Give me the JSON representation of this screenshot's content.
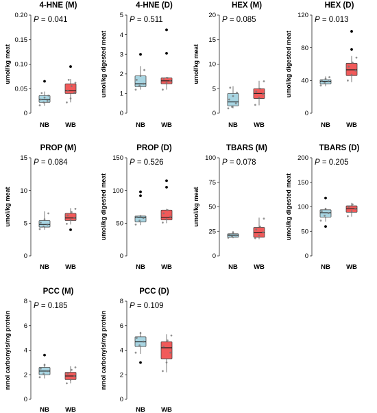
{
  "colors": {
    "NB": "#a8d5e2",
    "WB": "#f15a5a",
    "dot": "#000000",
    "jitter": "#777777",
    "axis": "#222222"
  },
  "chart_data": [
    {
      "type": "box",
      "title": "4-HNE (M)",
      "pvalue_label": "P",
      "pvalue": "= 0.041",
      "ylabel": "umol/kg meat",
      "ylim": [
        0,
        0.2
      ],
      "yticks": [
        "0",
        "0.05",
        "0.10",
        "0.15",
        "0.20"
      ],
      "yticks_values": [
        0,
        0.05,
        0.1,
        0.15,
        0.2
      ],
      "categories": [
        "NB",
        "WB"
      ],
      "boxes": [
        {
          "group": "NB",
          "q1": 0.022,
          "median": 0.028,
          "q3": 0.036,
          "whisker_low": 0.015,
          "whisker_high": 0.044,
          "outliers": [
            0.065
          ],
          "points": [
            0.016,
            0.022,
            0.025,
            0.028,
            0.032,
            0.036,
            0.041
          ]
        },
        {
          "group": "WB",
          "q1": 0.04,
          "median": 0.046,
          "q3": 0.06,
          "whisker_low": 0.022,
          "whisker_high": 0.07,
          "outliers": [
            0.095
          ],
          "points": [
            0.022,
            0.03,
            0.042,
            0.046,
            0.055,
            0.062,
            0.068
          ]
        }
      ]
    },
    {
      "type": "box",
      "title": "4-HNE (D)",
      "pvalue_label": "P",
      "pvalue": "= 0.511",
      "ylabel": "umol/kg digested meat",
      "ylim": [
        0,
        5
      ],
      "yticks": [
        "0",
        "1",
        "2",
        "3",
        "4",
        "5"
      ],
      "yticks_values": [
        0,
        1,
        2,
        3,
        4,
        5
      ],
      "categories": [
        "NB",
        "WB"
      ],
      "boxes": [
        {
          "group": "NB",
          "q1": 1.35,
          "median": 1.5,
          "q3": 1.9,
          "whisker_low": 1.2,
          "whisker_high": 2.4,
          "outliers": [
            3.0
          ],
          "points": [
            1.2,
            1.4,
            1.5,
            1.7,
            1.9,
            2.2
          ]
        },
        {
          "group": "WB",
          "q1": 1.5,
          "median": 1.65,
          "q3": 1.8,
          "whisker_low": 1.2,
          "whisker_high": 1.85,
          "outliers": [
            3.05,
            4.25
          ],
          "points": [
            1.2,
            1.55,
            1.65,
            1.75,
            1.8
          ]
        }
      ]
    },
    {
      "type": "box",
      "title": "HEX (M)",
      "pvalue_label": "P",
      "pvalue": "= 0.085",
      "ylabel": "umol/kg meat",
      "ylim": [
        0,
        20
      ],
      "yticks": [
        "0",
        "5",
        "10",
        "15",
        "20"
      ],
      "yticks_values": [
        0,
        5,
        10,
        15,
        20
      ],
      "categories": [
        "NB",
        "WB"
      ],
      "boxes": [
        {
          "group": "NB",
          "q1": 1.5,
          "median": 2.3,
          "q3": 4.0,
          "whisker_low": 1.0,
          "whisker_high": 5.5,
          "outliers": [],
          "points": [
            1.0,
            1.3,
            2.0,
            2.8,
            3.5,
            4.2,
            5.2
          ]
        },
        {
          "group": "WB",
          "q1": 3.0,
          "median": 4.0,
          "q3": 5.0,
          "whisker_low": 1.6,
          "whisker_high": 6.6,
          "outliers": [],
          "points": [
            1.7,
            3.2,
            3.9,
            4.4,
            5.0,
            6.5
          ]
        }
      ]
    },
    {
      "type": "box",
      "title": "HEX (D)",
      "pvalue_label": "P",
      "pvalue": "= 0.013",
      "ylabel": "umol/kg digested meat",
      "ylim": [
        0,
        120
      ],
      "yticks": [
        "0",
        "40",
        "80",
        "120"
      ],
      "yticks_values": [
        0,
        40,
        80,
        120
      ],
      "categories": [
        "NB",
        "WB"
      ],
      "boxes": [
        {
          "group": "NB",
          "q1": 36,
          "median": 39,
          "q3": 41,
          "whisker_low": 33,
          "whisker_high": 45,
          "outliers": [],
          "points": [
            34,
            37,
            39,
            40,
            42,
            44
          ]
        },
        {
          "group": "WB",
          "q1": 46,
          "median": 53,
          "q3": 61,
          "whisker_low": 38,
          "whisker_high": 70,
          "outliers": [
            78,
            100
          ],
          "points": [
            40,
            47,
            52,
            57,
            62,
            68
          ]
        }
      ]
    },
    {
      "type": "box",
      "title": "PROP (M)",
      "pvalue_label": "P",
      "pvalue": "= 0.084",
      "ylabel": "umol/kg meat",
      "ylim": [
        0,
        15
      ],
      "yticks": [
        "0",
        "5",
        "10",
        "15"
      ],
      "yticks_values": [
        0,
        5,
        10,
        15
      ],
      "categories": [
        "NB",
        "WB"
      ],
      "boxes": [
        {
          "group": "NB",
          "q1": 4.4,
          "median": 4.8,
          "q3": 5.4,
          "whisker_low": 4.0,
          "whisker_high": 6.8,
          "outliers": [],
          "points": [
            4.1,
            4.5,
            4.8,
            5.1,
            5.6,
            6.5
          ]
        },
        {
          "group": "WB",
          "q1": 5.4,
          "median": 5.8,
          "q3": 6.5,
          "whisker_low": 4.8,
          "whisker_high": 7.3,
          "outliers": [
            4.0
          ],
          "points": [
            4.9,
            5.5,
            5.8,
            6.2,
            6.7,
            7.2
          ]
        }
      ]
    },
    {
      "type": "box",
      "title": "PROP (D)",
      "pvalue_label": "P",
      "pvalue": "= 0.526",
      "ylabel": "umol/kg digested meat",
      "ylim": [
        0,
        150
      ],
      "yticks": [
        "0",
        "50",
        "100",
        "150"
      ],
      "yticks_values": [
        0,
        50,
        100,
        150
      ],
      "categories": [
        "NB",
        "WB"
      ],
      "boxes": [
        {
          "group": "NB",
          "q1": 52,
          "median": 59,
          "q3": 61,
          "whisker_low": 47,
          "whisker_high": 62,
          "outliers": [
            92,
            98
          ],
          "points": [
            48,
            54,
            58,
            60,
            61
          ]
        },
        {
          "group": "WB",
          "q1": 55,
          "median": 59,
          "q3": 70,
          "whisker_low": 50,
          "whisker_high": 72,
          "outliers": [
            105,
            115
          ],
          "points": [
            51,
            56,
            60,
            65,
            70
          ]
        }
      ]
    },
    {
      "type": "box",
      "title": "TBARS (M)",
      "pvalue_label": "P",
      "pvalue": "= 0.078",
      "ylabel": "umol/kg meat",
      "ylim": [
        0,
        100
      ],
      "yticks": [
        "0",
        "25",
        "50",
        "75",
        "100"
      ],
      "yticks_values": [
        0,
        25,
        50,
        75,
        100
      ],
      "categories": [
        "NB",
        "WB"
      ],
      "boxes": [
        {
          "group": "NB",
          "q1": 19,
          "median": 21,
          "q3": 22.5,
          "whisker_low": 18,
          "whisker_high": 25,
          "outliers": [],
          "points": [
            18.5,
            20,
            21,
            22,
            24
          ]
        },
        {
          "group": "WB",
          "q1": 19,
          "median": 24,
          "q3": 29,
          "whisker_low": 17,
          "whisker_high": 39,
          "outliers": [],
          "points": [
            18,
            21,
            24,
            27,
            30,
            38
          ]
        }
      ]
    },
    {
      "type": "box",
      "title": "TBARS (D)",
      "pvalue_label": "P",
      "pvalue": "= 0.205",
      "ylabel": "umol/kg digested meat",
      "ylim": [
        0,
        200
      ],
      "yticks": [
        "0",
        "50",
        "100",
        "150",
        "200"
      ],
      "yticks_values": [
        0,
        50,
        100,
        150,
        200
      ],
      "categories": [
        "NB",
        "WB"
      ],
      "boxes": [
        {
          "group": "NB",
          "q1": 79,
          "median": 88,
          "q3": 94,
          "whisker_low": 70,
          "whisker_high": 98,
          "outliers": [
            118,
            60
          ],
          "points": [
            72,
            82,
            87,
            91,
            96
          ]
        },
        {
          "group": "WB",
          "q1": 89,
          "median": 96,
          "q3": 102,
          "whisker_low": 80,
          "whisker_high": 108,
          "outliers": [],
          "points": [
            81,
            91,
            96,
            100,
            105
          ]
        }
      ]
    },
    {
      "type": "box",
      "title": "PCC (M)",
      "pvalue_label": "P",
      "pvalue": "= 0.185",
      "ylabel": "nmol carbonyls/mg protein",
      "ylim": [
        0,
        8
      ],
      "yticks": [
        "0",
        "2",
        "4",
        "6",
        "8"
      ],
      "yticks_values": [
        0,
        2,
        4,
        6,
        8
      ],
      "categories": [
        "NB",
        "WB"
      ],
      "boxes": [
        {
          "group": "NB",
          "q1": 2.0,
          "median": 2.3,
          "q3": 2.6,
          "whisker_low": 1.7,
          "whisker_high": 2.9,
          "outliers": [
            3.6
          ],
          "points": [
            1.8,
            2.1,
            2.3,
            2.5,
            2.8
          ]
        },
        {
          "group": "WB",
          "q1": 1.6,
          "median": 1.9,
          "q3": 2.2,
          "whisker_low": 1.3,
          "whisker_high": 2.7,
          "outliers": [],
          "points": [
            1.3,
            1.6,
            1.9,
            2.1,
            2.4,
            2.6
          ]
        }
      ]
    },
    {
      "type": "box",
      "title": "PCC (D)",
      "pvalue_label": "P",
      "pvalue": "= 0.109",
      "ylabel": "nmol carbonyls/mg protein",
      "ylim": [
        0,
        8
      ],
      "yticks": [
        "0",
        "2",
        "4",
        "6",
        "8"
      ],
      "yticks_values": [
        0,
        2,
        4,
        6,
        8
      ],
      "categories": [
        "NB",
        "WB"
      ],
      "boxes": [
        {
          "group": "NB",
          "q1": 4.3,
          "median": 4.7,
          "q3": 5.1,
          "whisker_low": 3.7,
          "whisker_high": 5.5,
          "outliers": [
            3.0
          ],
          "points": [
            3.8,
            4.4,
            4.7,
            5.0,
            5.4
          ]
        },
        {
          "group": "WB",
          "q1": 3.3,
          "median": 4.2,
          "q3": 4.7,
          "whisker_low": 2.2,
          "whisker_high": 5.3,
          "outliers": [],
          "points": [
            2.3,
            3.0,
            3.8,
            4.3,
            4.8,
            5.2
          ]
        }
      ]
    }
  ]
}
